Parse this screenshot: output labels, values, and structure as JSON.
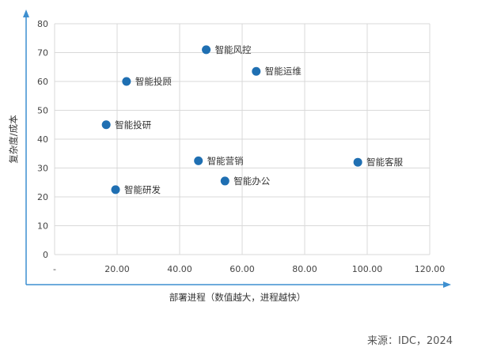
{
  "chart_data": {
    "type": "scatter",
    "title": "",
    "xlabel": "部署进程（数值越大，进程越快）",
    "ylabel": "复杂度/成本",
    "xlim": [
      0,
      120
    ],
    "ylim": [
      0,
      80
    ],
    "x_ticks": [
      "-",
      "20.00",
      "40.00",
      "60.00",
      "80.00",
      "100.00",
      "120.00"
    ],
    "y_ticks": [
      "0",
      "10",
      "20",
      "30",
      "40",
      "50",
      "60",
      "70",
      "80"
    ],
    "grid": true,
    "points": [
      {
        "label": "智能风控",
        "x": 48.5,
        "y": 71
      },
      {
        "label": "智能运维",
        "x": 64.5,
        "y": 63.5
      },
      {
        "label": "智能投顾",
        "x": 23,
        "y": 60
      },
      {
        "label": "智能投研",
        "x": 16.5,
        "y": 45
      },
      {
        "label": "智能营销",
        "x": 46,
        "y": 32.5
      },
      {
        "label": "智能客服",
        "x": 97,
        "y": 32
      },
      {
        "label": "智能办公",
        "x": 54.5,
        "y": 25.5
      },
      {
        "label": "智能研发",
        "x": 19.5,
        "y": 22.5
      }
    ],
    "colors": {
      "point": "#1f6fb2",
      "axis_arrow": "#3d8fd0",
      "grid": "#d9d9d9"
    }
  },
  "source": "来源：IDC，2024"
}
